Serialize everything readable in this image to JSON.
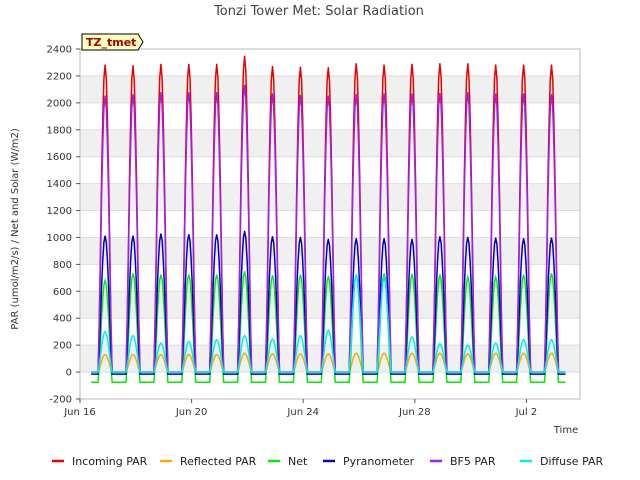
{
  "chart_data": {
    "type": "line",
    "title": "Tonzi Tower Met: Solar Radiation",
    "xlabel": "Time",
    "ylabel": "PAR (umol/m2/s) / Net and Solar (W/m2)",
    "site_tag": "TZ_tmet",
    "xlim": [
      "Jun 16",
      "Jul 4"
    ],
    "ylim": [
      -200,
      2400
    ],
    "yticks": [
      -200,
      0,
      200,
      400,
      600,
      800,
      1000,
      1200,
      1400,
      1600,
      1800,
      2000,
      2200,
      2400
    ],
    "xticks": [
      "Jun 16",
      "Jun 20",
      "Jun 24",
      "Jun 28",
      "Jul 2"
    ],
    "grid": "horizontal bands",
    "legend_position": "bottom",
    "days": [
      "Jun 16",
      "Jun 17",
      "Jun 18",
      "Jun 19",
      "Jun 20",
      "Jun 21",
      "Jun 22",
      "Jun 23",
      "Jun 24",
      "Jun 25",
      "Jun 26",
      "Jun 27",
      "Jun 28",
      "Jun 29",
      "Jun 30",
      "Jul 1",
      "Jul 2"
    ],
    "series": [
      {
        "name": "Incoming PAR",
        "color": "#ee0000",
        "night": 0,
        "daily_peak": [
          2280,
          2275,
          2285,
          2285,
          2285,
          2345,
          2270,
          2265,
          2260,
          2290,
          2280,
          2285,
          2290,
          2290,
          2280,
          2280,
          2280
        ]
      },
      {
        "name": "Reflected PAR",
        "color": "#ffaa00",
        "night": 0,
        "daily_peak": [
          130,
          130,
          130,
          130,
          130,
          140,
          135,
          135,
          135,
          140,
          140,
          140,
          140,
          135,
          140,
          140,
          140
        ]
      },
      {
        "name": "Net",
        "color": "#00ee00",
        "night": -75,
        "daily_peak": [
          680,
          730,
          720,
          720,
          720,
          745,
          715,
          720,
          710,
          720,
          730,
          725,
          720,
          705,
          705,
          720,
          730
        ]
      },
      {
        "name": "Pyranometer",
        "color": "#0000cc",
        "night": -15,
        "daily_peak": [
          1010,
          1010,
          1025,
          1020,
          1020,
          1045,
          1005,
          1000,
          985,
          990,
          990,
          985,
          1005,
          1000,
          995,
          990,
          995
        ]
      },
      {
        "name": "BF5 PAR",
        "color": "#9922ee",
        "night": 0,
        "daily_peak": [
          2050,
          2060,
          2075,
          2075,
          2075,
          2130,
          2065,
          2055,
          2050,
          2060,
          2065,
          2065,
          2070,
          2075,
          2065,
          2065,
          2060
        ]
      },
      {
        "name": "Diffuse PAR",
        "color": "#00eeee",
        "night": 0,
        "daily_peak": [
          300,
          270,
          215,
          225,
          240,
          270,
          245,
          270,
          310,
          720,
          700,
          260,
          210,
          200,
          215,
          240,
          240
        ]
      }
    ]
  }
}
